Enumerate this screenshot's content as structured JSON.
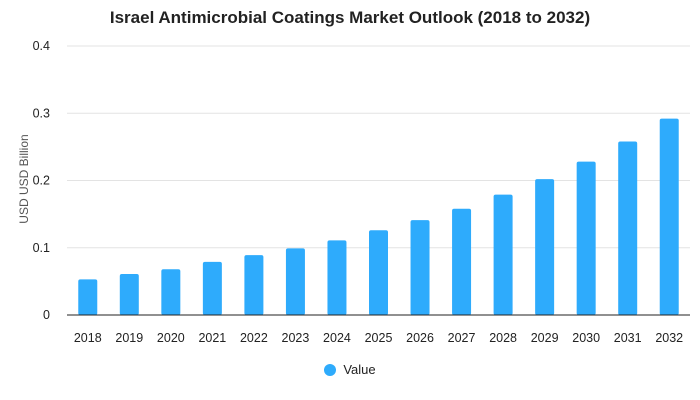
{
  "chart_data": {
    "type": "bar",
    "title": "Israel Antimicrobial Coatings Market Outlook (2018 to 2032)",
    "ylabel": "USD USD Billion",
    "xlabel": "",
    "categories": [
      "2018",
      "2019",
      "2020",
      "2021",
      "2022",
      "2023",
      "2024",
      "2025",
      "2026",
      "2027",
      "2028",
      "2029",
      "2030",
      "2031",
      "2032"
    ],
    "series": [
      {
        "name": "Value",
        "values": [
          0.053,
          0.061,
          0.068,
          0.079,
          0.089,
          0.099,
          0.111,
          0.126,
          0.141,
          0.158,
          0.179,
          0.202,
          0.228,
          0.258,
          0.292
        ]
      }
    ],
    "ylim": [
      0,
      0.4
    ],
    "yticks": [
      "0",
      "0.1",
      "0.2",
      "0.3",
      "0.4"
    ],
    "grid": true,
    "legend_position": "bottom",
    "colors": {
      "bar": "#2eabfc"
    }
  }
}
